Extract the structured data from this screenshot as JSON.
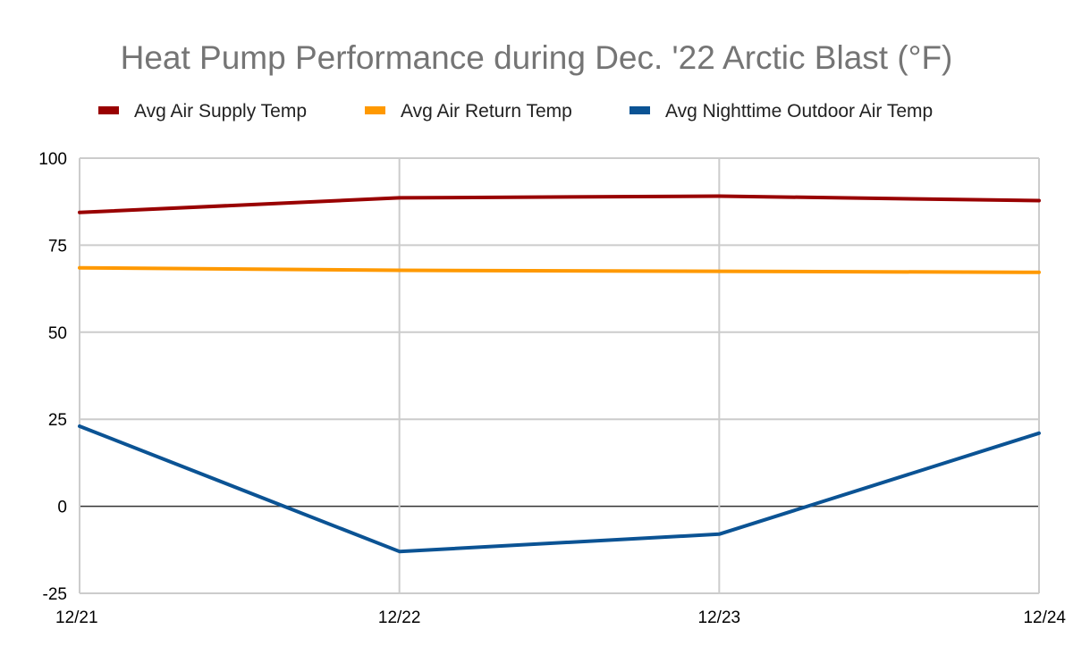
{
  "chart_data": {
    "type": "line",
    "title": "Heat Pump Performance during Dec. '22 Arctic Blast (°F)",
    "xlabel": "",
    "ylabel": "",
    "categories": [
      "12/21",
      "12/22",
      "12/23",
      "12/24"
    ],
    "ylim": [
      -25,
      100
    ],
    "yticks": [
      100,
      75,
      50,
      25,
      0,
      -25
    ],
    "ytick_labels": [
      "100",
      "75",
      "50",
      "25",
      "0",
      "-25"
    ],
    "grid": true,
    "legend_position": "top",
    "series": [
      {
        "name": "Avg Air Supply Temp",
        "color": "#990000",
        "values": [
          84.4,
          88.6,
          89.1,
          87.8
        ]
      },
      {
        "name": "Avg Air Return Temp",
        "color": "#ff9900",
        "values": [
          68.5,
          67.8,
          67.5,
          67.2
        ]
      },
      {
        "name": "Avg Nighttime Outdoor Air Temp",
        "color": "#0b5394",
        "values": [
          23.0,
          -13.0,
          -8.0,
          21.0
        ]
      }
    ]
  }
}
